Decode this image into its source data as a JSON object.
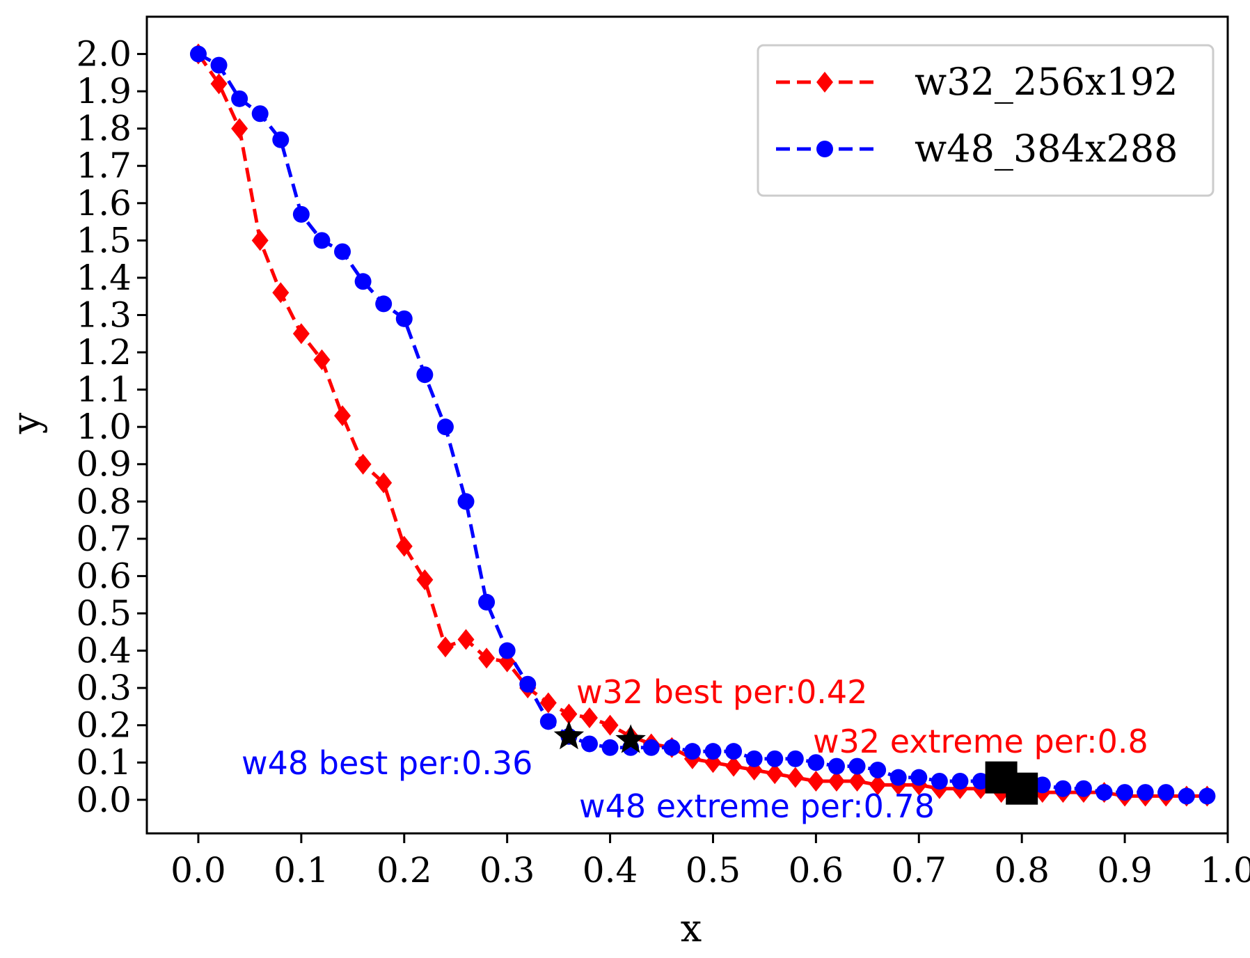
{
  "chart_data": {
    "type": "line",
    "title": "",
    "xlabel": "x",
    "ylabel": "y",
    "xlim": [
      -0.05,
      1.0
    ],
    "ylim": [
      -0.09,
      2.1
    ],
    "xticks": [
      "0.0",
      "0.1",
      "0.2",
      "0.3",
      "0.4",
      "0.5",
      "0.6",
      "0.7",
      "0.8",
      "0.9",
      "1.0"
    ],
    "yticks": [
      "0.0",
      "0.1",
      "0.2",
      "0.3",
      "0.4",
      "0.5",
      "0.6",
      "0.7",
      "0.8",
      "0.9",
      "1.0",
      "1.1",
      "1.2",
      "1.3",
      "1.4",
      "1.5",
      "1.6",
      "1.7",
      "1.8",
      "1.9",
      "2.0"
    ],
    "grid": false,
    "legend_position": "top-right",
    "series": [
      {
        "name": "w32_256x192",
        "color": "#ff0000",
        "marker": "diamond",
        "linestyle": "dashed",
        "x": [
          0.0,
          0.02,
          0.04,
          0.06,
          0.08,
          0.1,
          0.12,
          0.14,
          0.16,
          0.18,
          0.2,
          0.22,
          0.24,
          0.26,
          0.28,
          0.3,
          0.32,
          0.34,
          0.36,
          0.38,
          0.4,
          0.42,
          0.44,
          0.46,
          0.48,
          0.5,
          0.52,
          0.54,
          0.56,
          0.58,
          0.6,
          0.62,
          0.64,
          0.66,
          0.68,
          0.7,
          0.72,
          0.74,
          0.76,
          0.78,
          0.8,
          0.82,
          0.84,
          0.86,
          0.88,
          0.9,
          0.92,
          0.94,
          0.96,
          0.98
        ],
        "y": [
          2.0,
          1.92,
          1.8,
          1.5,
          1.36,
          1.25,
          1.18,
          1.03,
          0.9,
          0.85,
          0.68,
          0.59,
          0.41,
          0.43,
          0.38,
          0.37,
          0.3,
          0.26,
          0.23,
          0.22,
          0.2,
          0.17,
          0.15,
          0.14,
          0.11,
          0.1,
          0.09,
          0.08,
          0.07,
          0.06,
          0.05,
          0.05,
          0.05,
          0.04,
          0.04,
          0.04,
          0.03,
          0.03,
          0.03,
          0.02,
          0.02,
          0.02,
          0.02,
          0.02,
          0.02,
          0.01,
          0.01,
          0.01,
          0.01,
          0.01
        ]
      },
      {
        "name": "w48_384x288",
        "color": "#0000ff",
        "marker": "circle",
        "linestyle": "dashed",
        "x": [
          0.0,
          0.02,
          0.04,
          0.06,
          0.08,
          0.1,
          0.12,
          0.14,
          0.16,
          0.18,
          0.2,
          0.22,
          0.24,
          0.26,
          0.28,
          0.3,
          0.32,
          0.34,
          0.36,
          0.38,
          0.4,
          0.42,
          0.44,
          0.46,
          0.48,
          0.5,
          0.52,
          0.54,
          0.56,
          0.58,
          0.6,
          0.62,
          0.64,
          0.66,
          0.68,
          0.7,
          0.72,
          0.74,
          0.76,
          0.78,
          0.8,
          0.82,
          0.84,
          0.86,
          0.88,
          0.9,
          0.92,
          0.94,
          0.96,
          0.98
        ],
        "y": [
          2.0,
          1.97,
          1.88,
          1.84,
          1.77,
          1.57,
          1.5,
          1.47,
          1.39,
          1.33,
          1.29,
          1.14,
          1.0,
          0.8,
          0.53,
          0.4,
          0.31,
          0.21,
          0.17,
          0.15,
          0.14,
          0.14,
          0.14,
          0.14,
          0.13,
          0.13,
          0.13,
          0.11,
          0.11,
          0.11,
          0.1,
          0.09,
          0.09,
          0.08,
          0.06,
          0.06,
          0.05,
          0.05,
          0.05,
          0.04,
          0.04,
          0.04,
          0.03,
          0.03,
          0.02,
          0.02,
          0.02,
          0.02,
          0.01,
          0.01
        ]
      }
    ],
    "highlights": [
      {
        "label": "w32 best per:0.42",
        "x": 0.42,
        "y": 0.16,
        "marker": "star",
        "text_color": "#ff0000"
      },
      {
        "label": "w48 best per:0.36",
        "x": 0.36,
        "y": 0.17,
        "marker": "star",
        "text_color": "#0000ff"
      },
      {
        "label": "w32 extreme per:0.8",
        "x": 0.8,
        "y": 0.03,
        "marker": "square",
        "text_color": "#ff0000"
      },
      {
        "label": "w48 extreme per:0.78",
        "x": 0.78,
        "y": 0.06,
        "marker": "square",
        "text_color": "#0000ff"
      }
    ]
  }
}
